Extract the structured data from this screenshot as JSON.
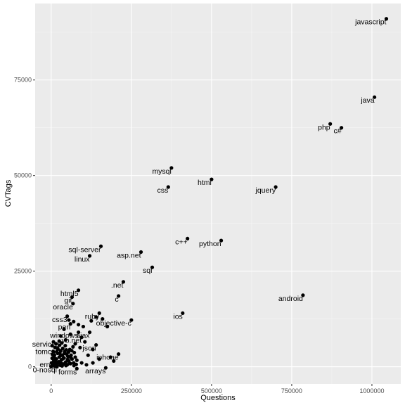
{
  "chart_data": {
    "type": "scatter",
    "xlabel": "Questions",
    "ylabel": "CVTags",
    "xlim": [
      -50000,
      1090000
    ],
    "ylim": [
      -4500,
      95000
    ],
    "x_ticks": [
      0,
      250000,
      500000,
      750000,
      1000000
    ],
    "x_tick_labels": [
      "0",
      "250000",
      "500000",
      "750000",
      "1000000"
    ],
    "y_ticks": [
      0,
      25000,
      50000,
      75000
    ],
    "y_tick_labels": [
      "0",
      "25000",
      "50000",
      "75000"
    ],
    "grid": true,
    "labeled_points": [
      {
        "label": "javascript",
        "x": 1045000,
        "y": 91000
      },
      {
        "label": "java",
        "x": 1008000,
        "y": 70500
      },
      {
        "label": "php",
        "x": 870000,
        "y": 63500
      },
      {
        "label": "c#",
        "x": 905000,
        "y": 62500
      },
      {
        "label": "mysql",
        "x": 375000,
        "y": 52000
      },
      {
        "label": "html",
        "x": 500000,
        "y": 49000
      },
      {
        "label": "css",
        "x": 365000,
        "y": 47000
      },
      {
        "label": "jquery",
        "x": 700000,
        "y": 47000
      },
      {
        "label": "c++",
        "x": 425000,
        "y": 33500
      },
      {
        "label": "python",
        "x": 530000,
        "y": 33000
      },
      {
        "label": "sql-server",
        "x": 155000,
        "y": 31500
      },
      {
        "label": "linux",
        "x": 120000,
        "y": 29000
      },
      {
        "label": "asp.net",
        "x": 280000,
        "y": 30000
      },
      {
        "label": "sql",
        "x": 315000,
        "y": 26000
      },
      {
        "label": ".net",
        "x": 225000,
        "y": 22200
      },
      {
        "label": "html5",
        "x": 85000,
        "y": 20000
      },
      {
        "label": "android",
        "x": 785000,
        "y": 18700
      },
      {
        "label": "git",
        "x": 65000,
        "y": 18200
      },
      {
        "label": "c",
        "x": 210000,
        "y": 18500
      },
      {
        "label": "oracle",
        "x": 68000,
        "y": 16500
      },
      {
        "label": "ruby",
        "x": 150000,
        "y": 14000
      },
      {
        "label": "ios",
        "x": 410000,
        "y": 14000
      },
      {
        "label": "css3",
        "x": 50000,
        "y": 13200
      },
      {
        "label": "objective-c",
        "x": 250000,
        "y": 12200
      },
      {
        "label": "perl",
        "x": 60000,
        "y": 11200
      },
      {
        "label": "windows",
        "x": 85000,
        "y": 9000
      },
      {
        "label": "ajax",
        "x": 120000,
        "y": 9000
      },
      {
        "label": "vb.net",
        "x": 95000,
        "y": 7700
      },
      {
        "label": "services",
        "x": 25000,
        "y": 6700
      },
      {
        "label": "json",
        "x": 140000,
        "y": 5700
      },
      {
        "label": "tomcat",
        "x": 20000,
        "y": 4800
      },
      {
        "label": "iphone",
        "x": 210000,
        "y": 3300
      },
      {
        "label": "erna",
        "x": 10000,
        "y": 1400
      },
      {
        "label": "0-nosql",
        "x": 18000,
        "y": 0
      },
      {
        "label": "forms",
        "x": 80000,
        "y": -500
      },
      {
        "label": "arrays",
        "x": 170000,
        "y": -300
      }
    ],
    "other_points": [
      {
        "x": 40000,
        "y": 9800
      },
      {
        "x": 55000,
        "y": 12200
      },
      {
        "x": 70000,
        "y": 11800
      },
      {
        "x": 85000,
        "y": 11000
      },
      {
        "x": 100000,
        "y": 10500
      },
      {
        "x": 125000,
        "y": 12000
      },
      {
        "x": 140000,
        "y": 13000
      },
      {
        "x": 160000,
        "y": 12500
      },
      {
        "x": 175000,
        "y": 10500
      },
      {
        "x": 30000,
        "y": 8000
      },
      {
        "x": 45000,
        "y": 7000
      },
      {
        "x": 60000,
        "y": 8500
      },
      {
        "x": 75000,
        "y": 6000
      },
      {
        "x": 90000,
        "y": 5000
      },
      {
        "x": 105000,
        "y": 6500
      },
      {
        "x": 115000,
        "y": 3000
      },
      {
        "x": 130000,
        "y": 4500
      },
      {
        "x": 150000,
        "y": 2000
      },
      {
        "x": 185000,
        "y": 2500
      },
      {
        "x": 195000,
        "y": 1500
      },
      {
        "x": 95000,
        "y": 1000
      },
      {
        "x": 110000,
        "y": 500
      },
      {
        "x": 130000,
        "y": 1000
      },
      {
        "x": 2000,
        "y": 300
      },
      {
        "x": 5000,
        "y": 800
      },
      {
        "x": 8000,
        "y": 1500
      },
      {
        "x": 3000,
        "y": 2200
      },
      {
        "x": 10000,
        "y": 3000
      },
      {
        "x": 14000,
        "y": 600
      },
      {
        "x": 16000,
        "y": 2000
      },
      {
        "x": 20000,
        "y": 3500
      },
      {
        "x": 22000,
        "y": 1000
      },
      {
        "x": 25000,
        "y": 2500
      },
      {
        "x": 28000,
        "y": 400
      },
      {
        "x": 30000,
        "y": 4200
      },
      {
        "x": 32000,
        "y": 1800
      },
      {
        "x": 35000,
        "y": 3000
      },
      {
        "x": 38000,
        "y": 700
      },
      {
        "x": 40000,
        "y": 2300
      },
      {
        "x": 42000,
        "y": 4000
      },
      {
        "x": 45000,
        "y": 1200
      },
      {
        "x": 48000,
        "y": 3300
      },
      {
        "x": 50000,
        "y": 500
      },
      {
        "x": 52000,
        "y": 2700
      },
      {
        "x": 55000,
        "y": 1500
      },
      {
        "x": 58000,
        "y": 4500
      },
      {
        "x": 60000,
        "y": 800
      },
      {
        "x": 62000,
        "y": 3000
      },
      {
        "x": 65000,
        "y": 2000
      },
      {
        "x": 68000,
        "y": 5200
      },
      {
        "x": 70000,
        "y": 1000
      },
      {
        "x": 72000,
        "y": 3700
      },
      {
        "x": 75000,
        "y": 2500
      },
      {
        "x": 78000,
        "y": 600
      },
      {
        "x": 6000,
        "y": 4000
      },
      {
        "x": 12000,
        "y": 5000
      },
      {
        "x": 18000,
        "y": 200
      },
      {
        "x": 26000,
        "y": 5600
      },
      {
        "x": 34000,
        "y": 200
      },
      {
        "x": 44000,
        "y": 5500
      },
      {
        "x": 1000,
        "y": 1000
      },
      {
        "x": 4000,
        "y": 3200
      },
      {
        "x": 9000,
        "y": 2600
      },
      {
        "x": 13000,
        "y": 1800
      },
      {
        "x": 17000,
        "y": 3900
      },
      {
        "x": 24000,
        "y": 1300
      },
      {
        "x": 29000,
        "y": 2900
      },
      {
        "x": 36000,
        "y": 4800
      },
      {
        "x": 46000,
        "y": 300
      },
      {
        "x": 54000,
        "y": 3800
      },
      {
        "x": 64000,
        "y": 4200
      },
      {
        "x": 80000,
        "y": 1700
      },
      {
        "x": 11000,
        "y": 100
      },
      {
        "x": 21000,
        "y": 4600
      },
      {
        "x": 31000,
        "y": 900
      },
      {
        "x": 41000,
        "y": 3500
      },
      {
        "x": 51000,
        "y": 1900
      },
      {
        "x": 61000,
        "y": 2400
      },
      {
        "x": 71000,
        "y": 300
      },
      {
        "x": 15000,
        "y": 6000
      },
      {
        "x": 7000,
        "y": 6500
      },
      {
        "x": 33000,
        "y": 6200
      },
      {
        "x": 3000,
        "y": 5500
      },
      {
        "x": 0,
        "y": 0
      },
      {
        "x": 19000,
        "y": 1100
      },
      {
        "x": 27000,
        "y": 3600
      },
      {
        "x": 37000,
        "y": 2100
      },
      {
        "x": 47000,
        "y": 4400
      },
      {
        "x": 57000,
        "y": 900
      }
    ]
  }
}
